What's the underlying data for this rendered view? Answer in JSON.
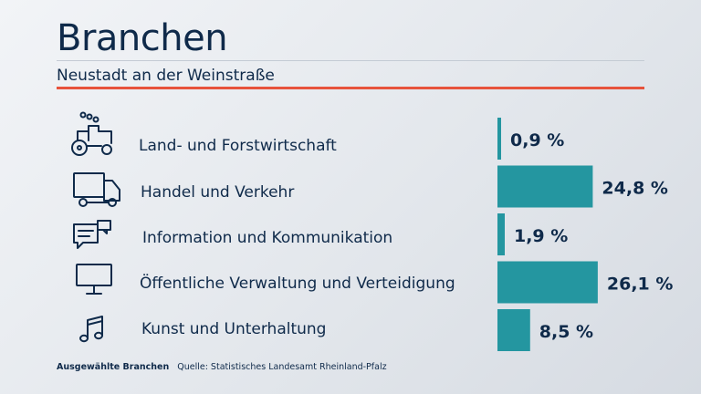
{
  "title": "Branchen",
  "subtitle": "Neustadt an der Weinstraße",
  "colors": {
    "bar": "#2496a0",
    "accent_line": "#e7533c",
    "text": "#0f2a4a"
  },
  "chart_data": {
    "type": "bar",
    "orientation": "horizontal",
    "unit": "%",
    "categories": [
      "Land- und Forstwirtschaft",
      "Handel und Verkehr",
      "Information und Kommunikation",
      "Öffentliche Verwaltung und Verteidigung",
      "Kunst und Unterhaltung"
    ],
    "values": [
      0.9,
      24.8,
      1.9,
      26.1,
      8.5
    ],
    "value_labels": [
      "0,9 %",
      "24,8 %",
      "1,9 %",
      "26,1 %",
      "8,5 %"
    ],
    "icons": [
      "tractor-icon",
      "truck-icon",
      "chat-bubbles-icon",
      "monitor-icon",
      "music-note-icon"
    ]
  },
  "footer": {
    "category": "Ausgewählte Branchen",
    "source": "Quelle: Statistisches Landesamt Rheinland-Pfalz"
  }
}
